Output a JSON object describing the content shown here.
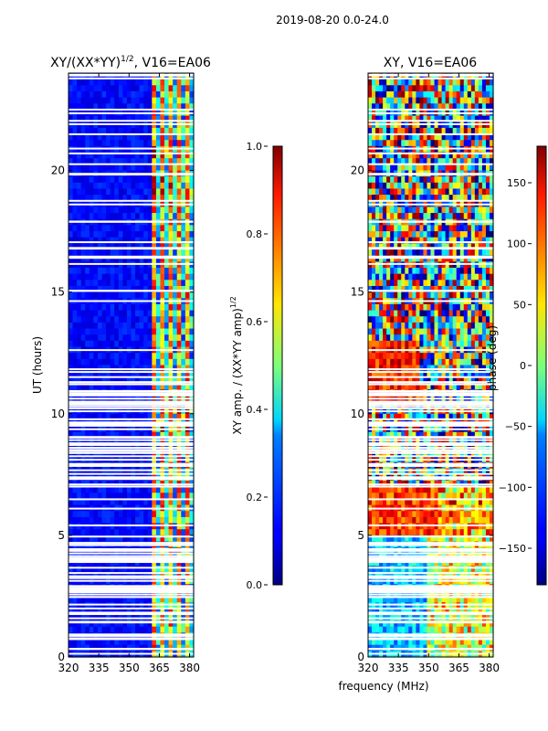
{
  "figure": {
    "suptitle": "2019-08-20 0.0-24.0"
  },
  "chart_data": [
    {
      "type": "heatmap",
      "title_main": "XY/(XX*YY)",
      "title_sup": "1/2",
      "title_tail": ", V16=EA06",
      "xlabel": "",
      "ylabel": "UT (hours)",
      "xlim": [
        320,
        382
      ],
      "ylim": [
        0,
        24
      ],
      "xticks": [
        320,
        335,
        350,
        365,
        380
      ],
      "yticks": [
        0,
        5,
        10,
        15,
        20
      ],
      "colorbar": {
        "label": "XY amp. / (XX*YY amp)",
        "label_sup": "1/2",
        "range": [
          0.0,
          1.0
        ],
        "ticks": [
          "0.0",
          "0.2",
          "0.4",
          "0.6",
          "0.8",
          "1.0"
        ],
        "tick_values": [
          0.0,
          0.2,
          0.4,
          0.6,
          0.8,
          1.0
        ]
      }
    },
    {
      "type": "heatmap",
      "title_main": "XY, V16=EA06",
      "xlabel": "frequency (MHz)",
      "ylabel": "",
      "xlim": [
        320,
        382
      ],
      "ylim": [
        0,
        24
      ],
      "xticks": [
        320,
        335,
        350,
        365,
        380
      ],
      "yticks": [
        0,
        5,
        10,
        15,
        20
      ],
      "colorbar": {
        "label": "phase (deg)",
        "range": [
          -180,
          180
        ],
        "ticks": [
          "−150",
          "−100",
          "−50",
          "0",
          "50",
          "100",
          "150"
        ],
        "tick_values": [
          -150,
          -100,
          -50,
          0,
          50,
          100,
          150
        ]
      }
    }
  ],
  "colors": {
    "jet_low": "#00007f",
    "jet_mid": "#7dff7a",
    "jet_high": "#7f0000",
    "flag": "#ffffff"
  }
}
